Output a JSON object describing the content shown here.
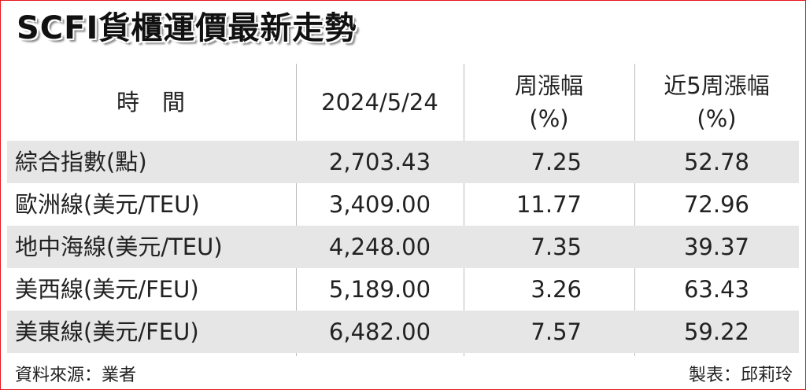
{
  "title": "SCFI貨櫃運價最新走勢",
  "table": {
    "header": [
      [
        "時　間"
      ],
      [
        "2024/5/24"
      ],
      [
        "周漲幅",
        "(%)"
      ],
      [
        "近5周漲幅",
        "(%)"
      ]
    ],
    "rows": [
      [
        "綜合指數(點)",
        "2,703.43",
        "7.25",
        "52.78"
      ],
      [
        "歐洲線(美元/TEU)",
        "3,409.00",
        "11.77",
        "72.96"
      ],
      [
        "地中海線(美元/TEU)",
        "4,248.00",
        "7.35",
        "39.37"
      ],
      [
        "美西線(美元/FEU)",
        "5,189.00",
        "3.26",
        "63.43"
      ],
      [
        "美東線(美元/FEU)",
        "6,482.00",
        "7.57",
        "59.22"
      ]
    ]
  },
  "footer": {
    "source": "資料來源：業者",
    "author": "製表：邱莉玲"
  }
}
